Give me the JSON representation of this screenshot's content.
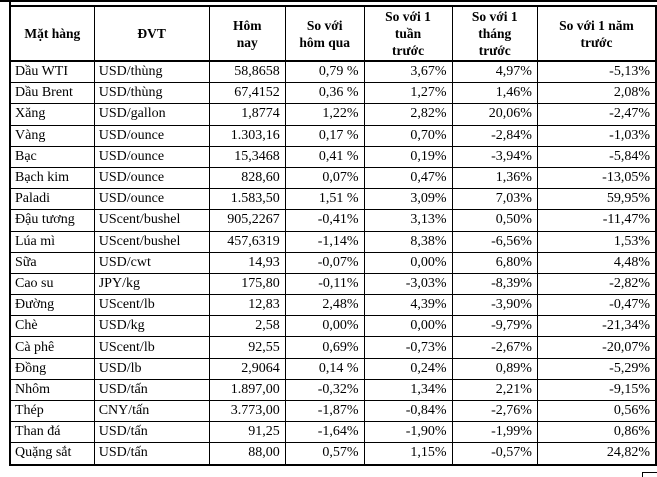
{
  "colors": {
    "background": "#ffffff",
    "border": "#000000",
    "text": "#000000"
  },
  "chart_data": {
    "type": "table",
    "title": "",
    "columns": [
      "Mặt hàng",
      "ĐVT",
      "Hôm nay",
      "So với hôm qua",
      "So với 1 tuần trước",
      "So với 1 tháng trước",
      "So với 1 năm trước"
    ],
    "rows": [
      [
        "Dầu WTI",
        "USD/thùng",
        "58,8658",
        "0,79 %",
        "3,67%",
        "4,97%",
        "-5,13%"
      ],
      [
        "Dầu Brent",
        "USD/thùng",
        "67,4152",
        "0,36 %",
        "1,27%",
        "1,46%",
        "2,08%"
      ],
      [
        "Xăng",
        "USD/gallon",
        "1,8774",
        "1,22%",
        "2,82%",
        "20,06%",
        "-2,47%"
      ],
      [
        "Vàng",
        "USD/ounce",
        "1.303,16",
        "0,17 %",
        "0,70%",
        "-2,84%",
        "-1,03%"
      ],
      [
        "Bạc",
        "USD/ounce",
        "15,3468",
        "0,41 %",
        "0,19%",
        "-3,94%",
        "-5,84%"
      ],
      [
        "Bạch kim",
        "USD/ounce",
        "828,60",
        "0,07%",
        "0,47%",
        "1,36%",
        "-13,05%"
      ],
      [
        "Paladi",
        "USD/ounce",
        "1.583,50",
        "1,51 %",
        "3,09%",
        "7,03%",
        "59,95%"
      ],
      [
        "Đậu tương",
        "UScent/bushel",
        "905,2267",
        "-0,41%",
        "3,13%",
        "0,50%",
        "-11,47%"
      ],
      [
        "Lúa mì",
        "UScent/bushel",
        "457,6319",
        "-1,14%",
        "8,38%",
        "-6,56%",
        "1,53%"
      ],
      [
        "Sữa",
        "USD/cwt",
        "14,93",
        "-0,07%",
        "0,00%",
        "6,80%",
        "4,48%"
      ],
      [
        "Cao su",
        "JPY/kg",
        "175,80",
        "-0,11%",
        "-3,03%",
        "-8,39%",
        "-2,82%"
      ],
      [
        "Đường",
        "UScent/lb",
        "12,83",
        "2,48%",
        "4,39%",
        "-3,90%",
        "-0,47%"
      ],
      [
        "Chè",
        "USD/kg",
        "2,58",
        "0,00%",
        "0,00%",
        "-9,79%",
        "-21,34%"
      ],
      [
        "Cà phê",
        "UScent/lb",
        "92,55",
        "0,69%",
        "-0,73%",
        "-2,67%",
        "-20,07%"
      ],
      [
        "Đồng",
        "USD/lb",
        "2,9064",
        "0,14 %",
        "0,24%",
        "0,89%",
        "-5,29%"
      ],
      [
        "Nhôm",
        "USD/tấn",
        "1.897,00",
        "-0,32%",
        "1,34%",
        "2,21%",
        "-9,15%"
      ],
      [
        "Thép",
        "CNY/tấn",
        "3.773,00",
        "-1,87%",
        "-0,84%",
        "-2,76%",
        "0,56%"
      ],
      [
        "Than đá",
        "USD/tấn",
        "91,25",
        "-1,64%",
        "-1,90%",
        "-1,99%",
        "0,86%"
      ],
      [
        "Quặng sắt",
        "USD/tấn",
        "88,00",
        "0,57%",
        "1,15%",
        "-0,57%",
        "24,82%"
      ]
    ]
  },
  "table": {
    "header_labels": [
      "Mặt hàng",
      "ĐVT",
      "Hôm\nnay",
      "So với\nhôm qua",
      "So với 1\ntuần\ntrước",
      "So với 1\ntháng\ntrước",
      "So với 1 năm\ntrước"
    ],
    "column_keys": [
      "name",
      "unit",
      "today",
      "vs_yesterday",
      "vs_week",
      "vs_month",
      "vs_year"
    ],
    "column_aligns": [
      "left",
      "left",
      "right",
      "right",
      "right",
      "right",
      "right"
    ]
  }
}
